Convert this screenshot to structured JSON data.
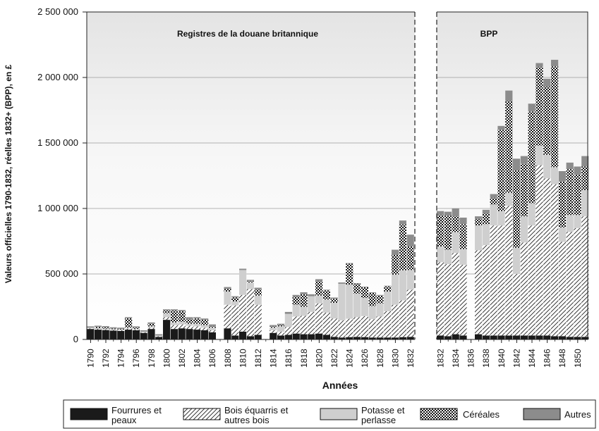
{
  "chart_data": {
    "type": "bar",
    "stacked": true,
    "title": "",
    "xlabel": "Années",
    "ylabel": "Valeurs officielles 1790-1832, réelles 1832+ (BPP), en £",
    "ylim": [
      0,
      2500000
    ],
    "yticks": [
      0,
      500000,
      1000000,
      1500000,
      2000000,
      2500000
    ],
    "ytick_labels": [
      "0",
      "500 000",
      "1 000 000",
      "1 500 000",
      "2 000 000",
      "2 500 000"
    ],
    "grid": true,
    "legend_position": "bottom",
    "panels": [
      {
        "label": "Registres de la douane britannique",
        "categories": [
          "1790",
          "1791",
          "1792",
          "1793",
          "1794",
          "1795",
          "1796",
          "1797",
          "1798",
          "1799",
          "1800",
          "1801",
          "1802",
          "1803",
          "1804",
          "1805",
          "1806",
          "1807",
          "1808",
          "1809",
          "1810",
          "1811",
          "1812",
          "1813",
          "1814",
          "1815",
          "1816",
          "1817",
          "1818",
          "1819",
          "1820",
          "1821",
          "1822",
          "1823",
          "1824",
          "1825",
          "1826",
          "1827",
          "1828",
          "1829",
          "1830",
          "1831",
          "1832"
        ],
        "tick_labels": [
          "1790",
          "1792",
          "1794",
          "1796",
          "1798",
          "1800",
          "1802",
          "1804",
          "1806",
          "1808",
          "1810",
          "1812",
          "1814",
          "1816",
          "1818",
          "1820",
          "1822",
          "1824",
          "1826",
          "1828",
          "1830",
          "1832"
        ],
        "series": [
          {
            "name": "Fourrures et peaux",
            "values": [
              80000,
              75000,
              72000,
              68000,
              65000,
              75000,
              70000,
              50000,
              80000,
              20000,
              150000,
              80000,
              85000,
              80000,
              75000,
              70000,
              55000,
              0,
              85000,
              30000,
              60000,
              25000,
              35000,
              0,
              50000,
              30000,
              35000,
              45000,
              40000,
              40000,
              45000,
              35000,
              20000,
              15000,
              18000,
              20000,
              18000,
              15000,
              15000,
              15000,
              15000,
              18000,
              20000
            ]
          },
          {
            "name": "Bois équarris et autres bois",
            "values": [
              5000,
              5000,
              5000,
              5000,
              5000,
              8000,
              5000,
              5000,
              10000,
              5000,
              20000,
              30000,
              30000,
              25000,
              25000,
              20000,
              15000,
              0,
              180000,
              230000,
              280000,
              360000,
              230000,
              0,
              20000,
              30000,
              60000,
              130000,
              140000,
              170000,
              230000,
              170000,
              140000,
              130000,
              140000,
              150000,
              160000,
              140000,
              160000,
              200000,
              250000,
              280000,
              360000
            ]
          },
          {
            "name": "Potasse et perlasse",
            "values": [
              5000,
              5000,
              5000,
              5000,
              5000,
              8000,
              5000,
              5000,
              10000,
              5000,
              30000,
              20000,
              20000,
              15000,
              20000,
              20000,
              20000,
              0,
              100000,
              30000,
              190000,
              50000,
              70000,
              0,
              20000,
              40000,
              100000,
              90000,
              70000,
              120000,
              60000,
              100000,
              120000,
              280000,
              260000,
              180000,
              140000,
              100000,
              100000,
              150000,
              230000,
              230000,
              150000
            ]
          },
          {
            "name": "Céréales",
            "values": [
              0,
              10000,
              10000,
              5000,
              5000,
              70000,
              10000,
              0,
              20000,
              0,
              20000,
              90000,
              80000,
              35000,
              40000,
              40000,
              10000,
              0,
              20000,
              30000,
              0,
              10000,
              45000,
              0,
              10000,
              10000,
              0,
              60000,
              95000,
              0,
              110000,
              70000,
              30000,
              0,
              160000,
              75000,
              80000,
              100000,
              60000,
              40000,
              150000,
              350000,
              180000
            ]
          },
          {
            "name": "Autres",
            "values": [
              10000,
              10000,
              10000,
              10000,
              10000,
              9000,
              10000,
              10000,
              10000,
              10000,
              10000,
              10000,
              10000,
              15000,
              10000,
              10000,
              15000,
              0,
              15000,
              10000,
              10000,
              10000,
              15000,
              0,
              10000,
              10000,
              15000,
              15000,
              15000,
              15000,
              15000,
              5000,
              10000,
              10000,
              5000,
              5000,
              5000,
              5000,
              5000,
              5000,
              40000,
              30000,
              90000
            ]
          }
        ]
      },
      {
        "label": "BPP",
        "categories": [
          "1832",
          "1833",
          "1834",
          "1835",
          "1836",
          "1837",
          "1838",
          "1839",
          "1840",
          "1841",
          "1842",
          "1843",
          "1844",
          "1845",
          "1846",
          "1847",
          "1848",
          "1849",
          "1850",
          "1851"
        ],
        "tick_labels": [
          "1832",
          "1834",
          "1836",
          "1838",
          "1840",
          "1842",
          "1844",
          "1846",
          "1848",
          "1850"
        ],
        "series": [
          {
            "name": "Fourrures et peaux",
            "values": [
              30000,
              25000,
              40000,
              30000,
              0,
              40000,
              30000,
              30000,
              30000,
              30000,
              30000,
              30000,
              30000,
              30000,
              30000,
              25000,
              25000,
              20000,
              20000,
              20000
            ]
          },
          {
            "name": "Bois équarris et autres bois",
            "values": [
              560000,
              550000,
              620000,
              540000,
              0,
              640000,
              690000,
              840000,
              840000,
              990000,
              470000,
              710000,
              840000,
              1300000,
              1200000,
              1160000,
              720000,
              800000,
              830000,
              920000
            ]
          },
          {
            "name": "Potasse et perlasse",
            "values": [
              120000,
              110000,
              160000,
              120000,
              0,
              190000,
              160000,
              160000,
              110000,
              100000,
              200000,
              200000,
              170000,
              150000,
              180000,
              130000,
              110000,
              130000,
              100000,
              200000
            ]
          },
          {
            "name": "Céréales",
            "values": [
              240000,
              260000,
              120000,
              190000,
              0,
              50000,
              80000,
              50000,
              620000,
              700000,
              590000,
              400000,
              700000,
              600000,
              520000,
              770000,
              350000,
              350000,
              310000,
              180000
            ]
          },
          {
            "name": "Autres",
            "values": [
              30000,
              30000,
              60000,
              50000,
              0,
              20000,
              30000,
              30000,
              30000,
              80000,
              90000,
              60000,
              60000,
              30000,
              60000,
              50000,
              80000,
              50000,
              60000,
              80000
            ]
          }
        ]
      }
    ],
    "legend": [
      {
        "name": "Fourrures et peaux",
        "pattern": "solid-black"
      },
      {
        "name": "Bois équarris et autres bois",
        "pattern": "diagonal-hatch"
      },
      {
        "name": "Potasse et perlasse",
        "pattern": "light-grey"
      },
      {
        "name": "Céréales",
        "pattern": "checker"
      },
      {
        "name": "Autres",
        "pattern": "dark-grey"
      }
    ],
    "colors": {
      "fur": "#1a1a1a",
      "wood": "#ffffff",
      "potash": "#cfcfcf",
      "cereal": "#000000",
      "other": "#8c8c8c",
      "panel_top": "#e8e8e8"
    }
  }
}
